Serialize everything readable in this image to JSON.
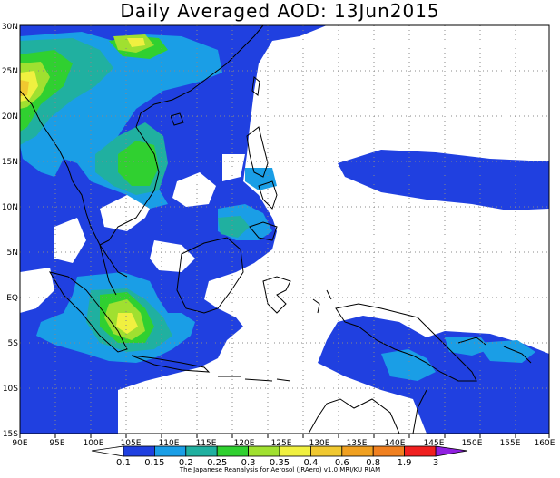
{
  "title": "Daily Averaged AOD: 13Jun2015",
  "credit": "The Japanese Reanalysis for Aerosol (JRAero) v1.0 MRI/KU RIAM",
  "colors": {
    "c0": "#2040e0",
    "c1": "#1a9ee6",
    "c2": "#20b0a0",
    "c3": "#30d030",
    "c4": "#a0e030",
    "c5": "#f0f040",
    "c6": "#f0c830",
    "c7": "#f0a020",
    "c8": "#f07020",
    "c9": "#f02020",
    "c10": "#9020e0",
    "land": "#000000"
  },
  "map": {
    "lon_labels": [
      "90E",
      "95E",
      "100E",
      "105E",
      "110E",
      "115E",
      "120E",
      "125E",
      "130E",
      "135E",
      "140E",
      "145E",
      "150E",
      "155E",
      "160E"
    ],
    "lat_labels": [
      "30N",
      "25N",
      "20N",
      "15N",
      "10N",
      "5N",
      "EQ",
      "5S",
      "10S",
      "15S"
    ]
  },
  "colorbar": {
    "labels": [
      "0.1",
      "0.15",
      "0.2",
      "0.25",
      "0.3",
      "0.35",
      "0.4",
      "0.6",
      "0.8",
      "1.9",
      "3"
    ],
    "colors": [
      "#2040e0",
      "#1a9ee6",
      "#20b0a0",
      "#30d030",
      "#a0e030",
      "#f0f040",
      "#f0c830",
      "#f0a020",
      "#f08020",
      "#f02020",
      "#9020e0"
    ]
  }
}
